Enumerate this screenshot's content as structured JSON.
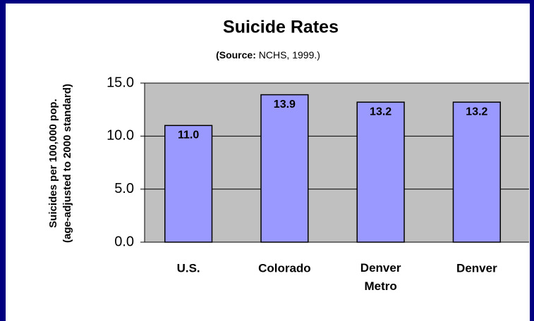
{
  "chart_data": {
    "type": "bar",
    "title": "Suicide Rates",
    "subtitle": {
      "bold": "(Source:",
      "rest": " NCHS, 1999.)"
    },
    "ylabel": [
      "Suicides per 100,000 pop.",
      "(age-adjusted to 2000 standard)"
    ],
    "categories": [
      "U.S.",
      "Colorado",
      "Denver Metro",
      "Denver"
    ],
    "values": [
      11.0,
      13.9,
      13.2,
      13.2
    ],
    "value_labels": [
      "11.0",
      "13.9",
      "13.2",
      "13.2"
    ],
    "color": "#9999ff",
    "ylim": [
      0,
      15
    ],
    "yticks": [
      {
        "value": 0,
        "label": "0.0"
      },
      {
        "value": 5,
        "label": "5.0"
      },
      {
        "value": 10,
        "label": "10.0"
      },
      {
        "value": 15,
        "label": "15.0"
      }
    ],
    "grid": true
  }
}
